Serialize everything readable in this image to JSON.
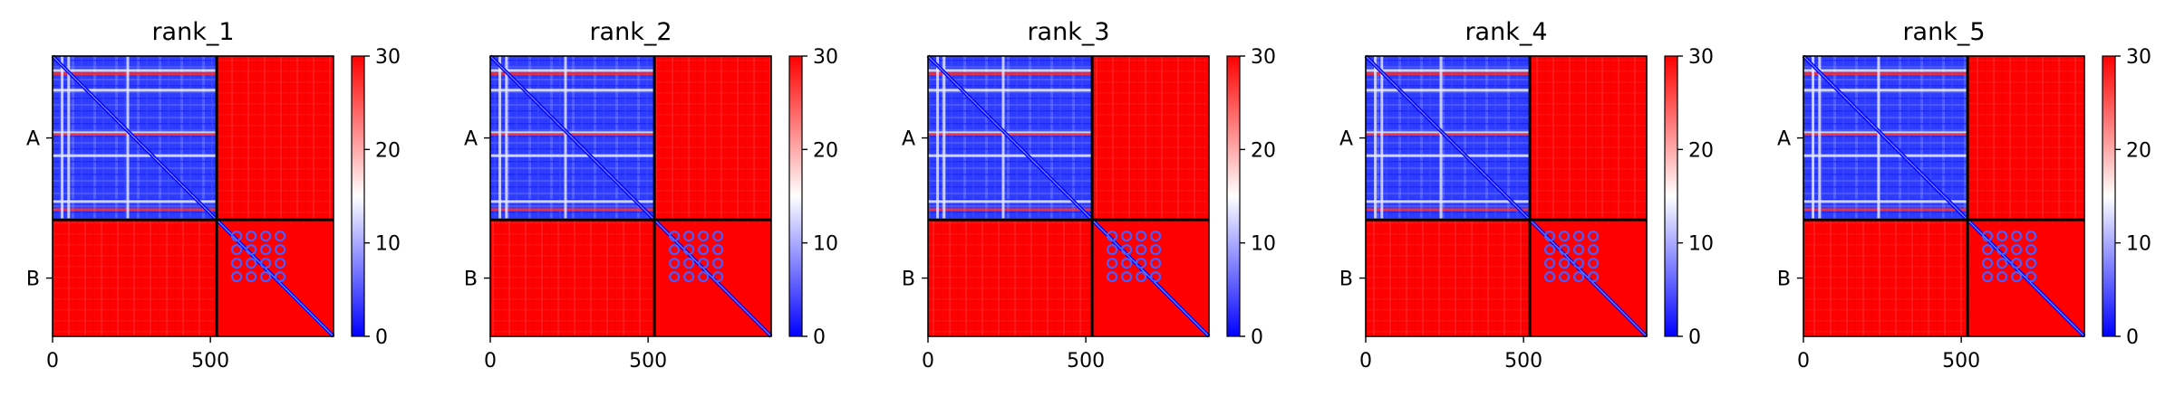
{
  "chart_data": [
    {
      "type": "heatmap",
      "title": "rank_1",
      "x_ticks": [
        0,
        500
      ],
      "y_ticks": [
        "A",
        "B"
      ],
      "xlim": [
        0,
        890
      ],
      "chain_boundary": 520,
      "colorbar": {
        "ticks": [
          0,
          10,
          20,
          30
        ],
        "range": [
          0,
          30
        ],
        "colors": [
          "#0000ff",
          "#ffffff",
          "#ff0000"
        ]
      }
    },
    {
      "type": "heatmap",
      "title": "rank_2",
      "x_ticks": [
        0,
        500
      ],
      "y_ticks": [
        "A",
        "B"
      ],
      "xlim": [
        0,
        890
      ],
      "chain_boundary": 520,
      "colorbar": {
        "ticks": [
          0,
          10,
          20,
          30
        ],
        "range": [
          0,
          30
        ],
        "colors": [
          "#0000ff",
          "#ffffff",
          "#ff0000"
        ]
      }
    },
    {
      "type": "heatmap",
      "title": "rank_3",
      "x_ticks": [
        0,
        500
      ],
      "y_ticks": [
        "A",
        "B"
      ],
      "xlim": [
        0,
        890
      ],
      "chain_boundary": 520,
      "colorbar": {
        "ticks": [
          0,
          10,
          20,
          30
        ],
        "range": [
          0,
          30
        ],
        "colors": [
          "#0000ff",
          "#ffffff",
          "#ff0000"
        ]
      }
    },
    {
      "type": "heatmap",
      "title": "rank_4",
      "x_ticks": [
        0,
        500
      ],
      "y_ticks": [
        "A",
        "B"
      ],
      "xlim": [
        0,
        890
      ],
      "chain_boundary": 520,
      "colorbar": {
        "ticks": [
          0,
          10,
          20,
          30
        ],
        "range": [
          0,
          30
        ],
        "colors": [
          "#0000ff",
          "#ffffff",
          "#ff0000"
        ]
      }
    },
    {
      "type": "heatmap",
      "title": "rank_5",
      "x_ticks": [
        0,
        500
      ],
      "y_ticks": [
        "A",
        "B"
      ],
      "xlim": [
        0,
        890
      ],
      "chain_boundary": 520,
      "colorbar": {
        "ticks": [
          0,
          10,
          20,
          30
        ],
        "range": [
          0,
          30
        ],
        "colors": [
          "#0000ff",
          "#ffffff",
          "#ff0000"
        ]
      }
    }
  ]
}
